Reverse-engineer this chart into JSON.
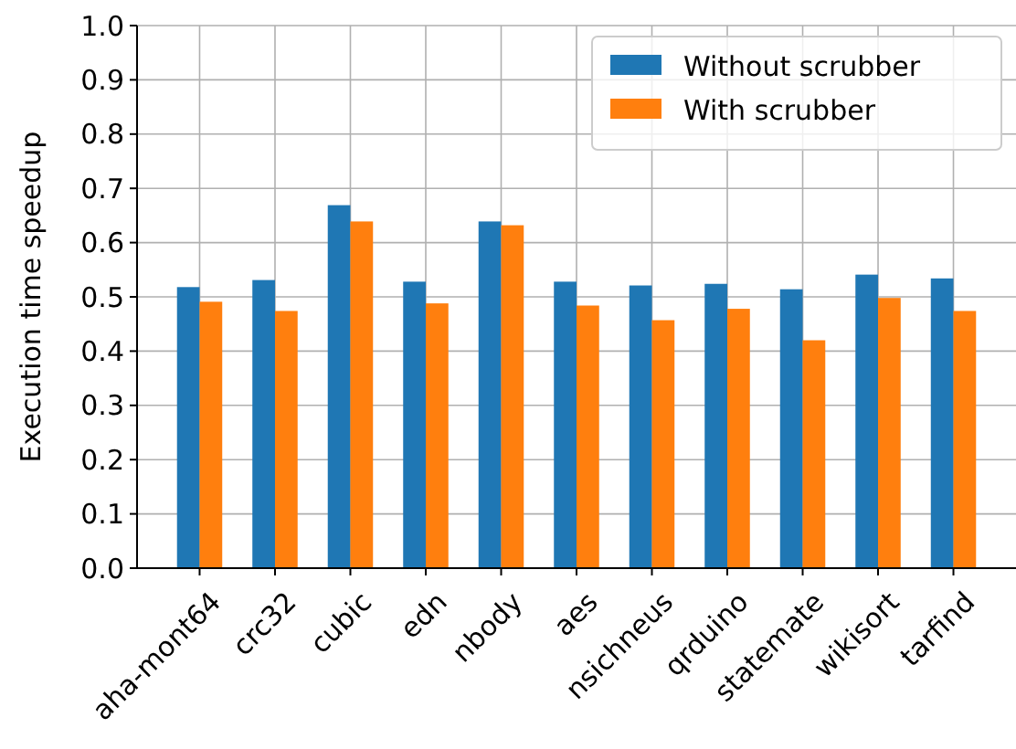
{
  "chart_data": {
    "type": "bar",
    "ylabel": "Execution time speedup",
    "categories": [
      "aha-mont64",
      "crc32",
      "cubic",
      "edn",
      "nbody",
      "aes",
      "nsichneus",
      "qrduino",
      "statemate",
      "wikisort",
      "tarfind"
    ],
    "series": [
      {
        "name": "Without scrubber",
        "color": "#1f77b4",
        "values": [
          0.518,
          0.531,
          0.669,
          0.528,
          0.639,
          0.528,
          0.521,
          0.524,
          0.514,
          0.541,
          0.534
        ]
      },
      {
        "name": "With scrubber",
        "color": "#ff7f0e",
        "values": [
          0.491,
          0.474,
          0.639,
          0.488,
          0.632,
          0.484,
          0.457,
          0.478,
          0.42,
          0.498,
          0.474
        ]
      }
    ],
    "ylim": [
      0,
      1
    ],
    "yticks": [
      {
        "value": 0,
        "label": "0.0"
      },
      {
        "value": 0.1,
        "label": "0.1"
      },
      {
        "value": 0.2,
        "label": "0.2"
      },
      {
        "value": 0.3,
        "label": "0.3"
      },
      {
        "value": 0.4,
        "label": "0.4"
      },
      {
        "value": 0.5,
        "label": "0.5"
      },
      {
        "value": 0.6,
        "label": "0.6"
      },
      {
        "value": 0.7,
        "label": "0.7"
      },
      {
        "value": 0.8,
        "label": "0.8"
      },
      {
        "value": 0.9,
        "label": "0.9"
      },
      {
        "value": 1,
        "label": "1.0"
      }
    ],
    "grid": true,
    "legend": "top right"
  }
}
